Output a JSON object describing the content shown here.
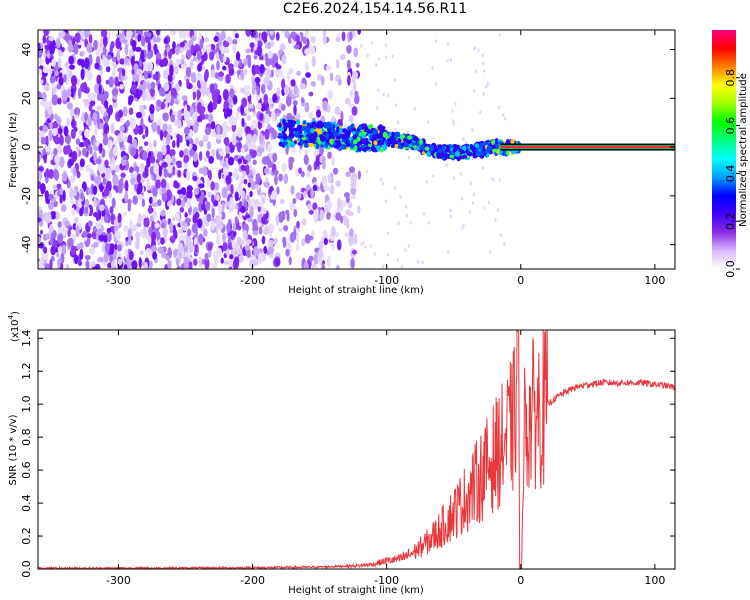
{
  "title": "C2E6.2024.154.14.56.R11",
  "chart_data": [
    {
      "type": "heatmap",
      "xlabel": "Height of straight line (km)",
      "ylabel": "Frequency (Hz)",
      "xlim": [
        -360,
        115
      ],
      "ylim": [
        -50,
        48
      ],
      "x_ticks": [
        "-300",
        "-200",
        "-100",
        "0",
        "100"
      ],
      "x_tick_values": [
        -300,
        -200,
        -100,
        0,
        100
      ],
      "y_ticks": [
        "40",
        "20",
        "0",
        "-20",
        "-40"
      ],
      "y_tick_values": [
        40,
        20,
        0,
        -20,
        -40
      ],
      "colorbar": {
        "label": "Normalized spectral amplitude",
        "ticks": [
          "0.0",
          "0.2",
          "0.4",
          "0.6",
          "0.8"
        ],
        "tick_values": [
          0.0,
          0.2,
          0.4,
          0.6,
          0.8
        ],
        "range": [
          0.0,
          1.0
        ],
        "colors": [
          "#ffffff",
          "#d9b8ff",
          "#8a2be2",
          "#4000ff",
          "#0000ff",
          "#00a0ff",
          "#00ffff",
          "#00ff80",
          "#00ff00",
          "#a0ff00",
          "#ffff00",
          "#ff8000",
          "#ff0000",
          "#ff0080"
        ]
      },
      "features": {
        "noise_region_x": [
          -360,
          -120
        ],
        "carrier_line_x": [
          -15,
          115
        ],
        "carrier_freq": 0,
        "signal_track": [
          [
            -180,
            6
          ],
          [
            -150,
            5
          ],
          [
            -120,
            4
          ],
          [
            -100,
            3
          ],
          [
            -80,
            2
          ],
          [
            -70,
            -1
          ],
          [
            -60,
            -2
          ],
          [
            -50,
            -2
          ],
          [
            -40,
            -2
          ],
          [
            -30,
            -1
          ],
          [
            -20,
            0
          ],
          [
            -10,
            0
          ],
          [
            0,
            0
          ]
        ]
      }
    },
    {
      "type": "line",
      "xlabel": "Height of straight line (km)",
      "ylabel": "SNR (10 * v/v)",
      "y_multiplier": "(x10",
      "y_multiplier_exp": "4",
      "y_multiplier_close": ")",
      "xlim": [
        -360,
        115
      ],
      "ylim": [
        0.0,
        1.45
      ],
      "x_ticks": [
        "-300",
        "-200",
        "-100",
        "0",
        "100"
      ],
      "x_tick_values": [
        -300,
        -200,
        -100,
        0,
        100
      ],
      "y_ticks": [
        "0.0",
        "0.2",
        "0.4",
        "0.6",
        "0.8",
        "1.0",
        "1.2",
        "1.4"
      ],
      "y_tick_values": [
        0.0,
        0.2,
        0.4,
        0.6,
        0.8,
        1.0,
        1.2,
        1.4
      ],
      "line_color": "#e8383d",
      "series": [
        {
          "x": [
            -360,
            -300,
            -250,
            -200,
            -150,
            -120,
            -110,
            -100,
            -90,
            -80,
            -70,
            -60,
            -50,
            -40,
            -30,
            -20,
            -10,
            -5,
            -2,
            0,
            2,
            5,
            10,
            20,
            30,
            40,
            50,
            60,
            70,
            80,
            90,
            100,
            110,
            115
          ],
          "values": [
            0.005,
            0.005,
            0.006,
            0.008,
            0.012,
            0.02,
            0.03,
            0.05,
            0.06,
            0.1,
            0.16,
            0.24,
            0.34,
            0.44,
            0.56,
            0.68,
            0.8,
            0.9,
            1.2,
            0.0,
            0.85,
            0.88,
            0.95,
            1.0,
            1.06,
            1.1,
            1.12,
            1.13,
            1.13,
            1.13,
            1.13,
            1.12,
            1.11,
            1.1
          ]
        }
      ]
    }
  ]
}
